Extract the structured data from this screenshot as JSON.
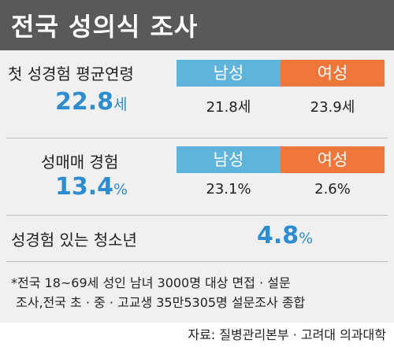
{
  "header": {
    "title": "전국 성의식 조사"
  },
  "chart_data": {
    "type": "table",
    "title": "전국 성의식 조사",
    "rows": [
      {
        "label": "첫 성경험 평균연령",
        "overall": {
          "value": "22.8",
          "unit": "세"
        },
        "categories": [
          {
            "name": "남성",
            "value": "21.8세",
            "color": "#5fb4db"
          },
          {
            "name": "여성",
            "value": "23.9세",
            "color": "#f0773b"
          }
        ]
      },
      {
        "label": "성매매 경험",
        "overall": {
          "value": "13.4",
          "unit": "%"
        },
        "categories": [
          {
            "name": "남성",
            "value": "23.1%",
            "color": "#5fb4db"
          },
          {
            "name": "여성",
            "value": "2.6%",
            "color": "#f0773b"
          }
        ]
      },
      {
        "label": "성경험 있는 청소년",
        "overall": {
          "value": "4.8",
          "unit": "%"
        }
      }
    ],
    "footnote": {
      "line1": "*전국 18~69세 성인 남녀 3000명 대상 면접 · 설문",
      "line2": "조사,전국 초 · 중 · 고교생 35만5305명 설문조사 종합"
    },
    "source": "자료: 질병관리본부 · 고려대 의과대학"
  }
}
